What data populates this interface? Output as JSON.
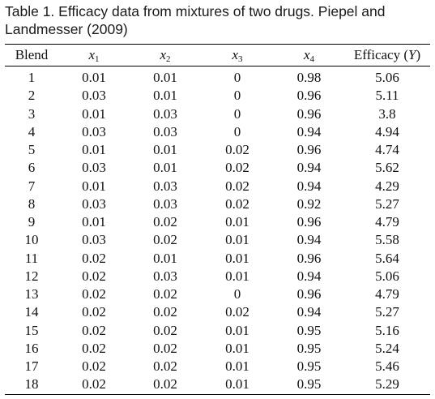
{
  "caption": "Table 1. Efficacy data from mixtures of two drugs. Piepel and Landmesser (2009)",
  "headers": [
    {
      "text": "Blend"
    },
    {
      "base": "x",
      "sub": "1"
    },
    {
      "base": "x",
      "sub": "2"
    },
    {
      "base": "x",
      "sub": "3"
    },
    {
      "base": "x",
      "sub": "4"
    },
    {
      "text": "Efficacy (",
      "var": "Y",
      "tail": ")"
    }
  ],
  "rows": [
    [
      "1",
      "0.01",
      "0.01",
      "0",
      "0.98",
      "5.06"
    ],
    [
      "2",
      "0.03",
      "0.01",
      "0",
      "0.96",
      "5.11"
    ],
    [
      "3",
      "0.01",
      "0.03",
      "0",
      "0.96",
      "3.8"
    ],
    [
      "4",
      "0.03",
      "0.03",
      "0",
      "0.94",
      "4.94"
    ],
    [
      "5",
      "0.01",
      "0.01",
      "0.02",
      "0.96",
      "4.74"
    ],
    [
      "6",
      "0.03",
      "0.01",
      "0.02",
      "0.94",
      "5.62"
    ],
    [
      "7",
      "0.01",
      "0.03",
      "0.02",
      "0.94",
      "4.29"
    ],
    [
      "8",
      "0.03",
      "0.03",
      "0.02",
      "0.92",
      "5.27"
    ],
    [
      "9",
      "0.01",
      "0.02",
      "0.01",
      "0.96",
      "4.79"
    ],
    [
      "10",
      "0.03",
      "0.02",
      "0.01",
      "0.94",
      "5.58"
    ],
    [
      "11",
      "0.02",
      "0.01",
      "0.01",
      "0.96",
      "5.64"
    ],
    [
      "12",
      "0.02",
      "0.03",
      "0.01",
      "0.94",
      "5.06"
    ],
    [
      "13",
      "0.02",
      "0.02",
      "0",
      "0.96",
      "4.79"
    ],
    [
      "14",
      "0.02",
      "0.02",
      "0.02",
      "0.94",
      "5.27"
    ],
    [
      "15",
      "0.02",
      "0.02",
      "0.01",
      "0.95",
      "5.16"
    ],
    [
      "16",
      "0.02",
      "0.02",
      "0.01",
      "0.95",
      "5.24"
    ],
    [
      "17",
      "0.02",
      "0.02",
      "0.01",
      "0.95",
      "5.46"
    ],
    [
      "18",
      "0.02",
      "0.02",
      "0.01",
      "0.95",
      "5.29"
    ]
  ]
}
